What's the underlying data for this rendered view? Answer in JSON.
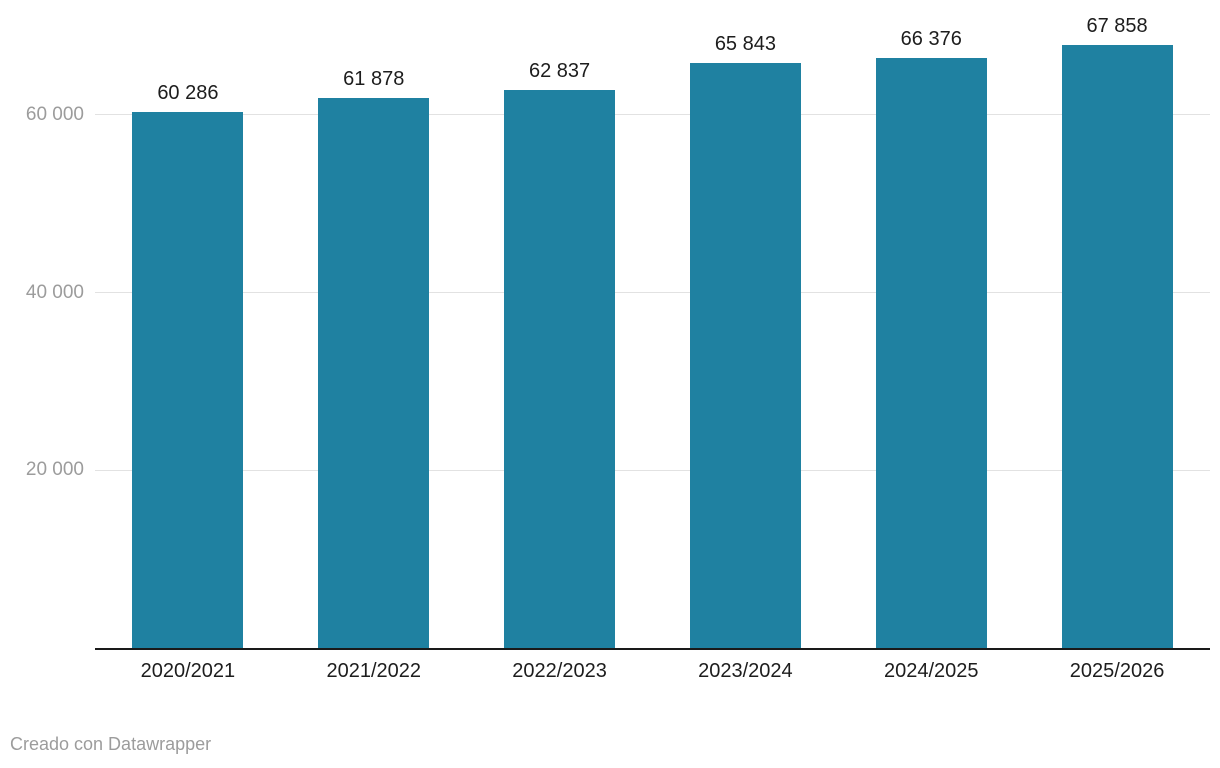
{
  "chart_data": {
    "type": "bar",
    "categories": [
      "2020/2021",
      "2021/2022",
      "2022/2023",
      "2023/2024",
      "2024/2025",
      "2025/2026"
    ],
    "values": [
      60286,
      61878,
      62837,
      65843,
      66376,
      67858
    ],
    "value_labels": [
      "60 286",
      "61 878",
      "62 837",
      "65 843",
      "66 376",
      "67 858"
    ],
    "yticks": [
      {
        "value": 20000,
        "label": "20 000"
      },
      {
        "value": 40000,
        "label": "40 000"
      },
      {
        "value": 60000,
        "label": "60 000"
      }
    ],
    "ylim": [
      0,
      73000
    ],
    "grid": "horizontal-lines",
    "legend": "none",
    "bar_color": "#1f81a1"
  },
  "colors": {
    "bar": "#1f81a1",
    "axis_line": "#1a1a1a",
    "gridline": "#e2e2e2",
    "tick_label": "#9c9c9c",
    "data_label": "#1d1d1d",
    "attribution": "#9c9c9c",
    "background": "#ffffff"
  },
  "footer": {
    "attribution": "Creado con Datawrapper"
  }
}
